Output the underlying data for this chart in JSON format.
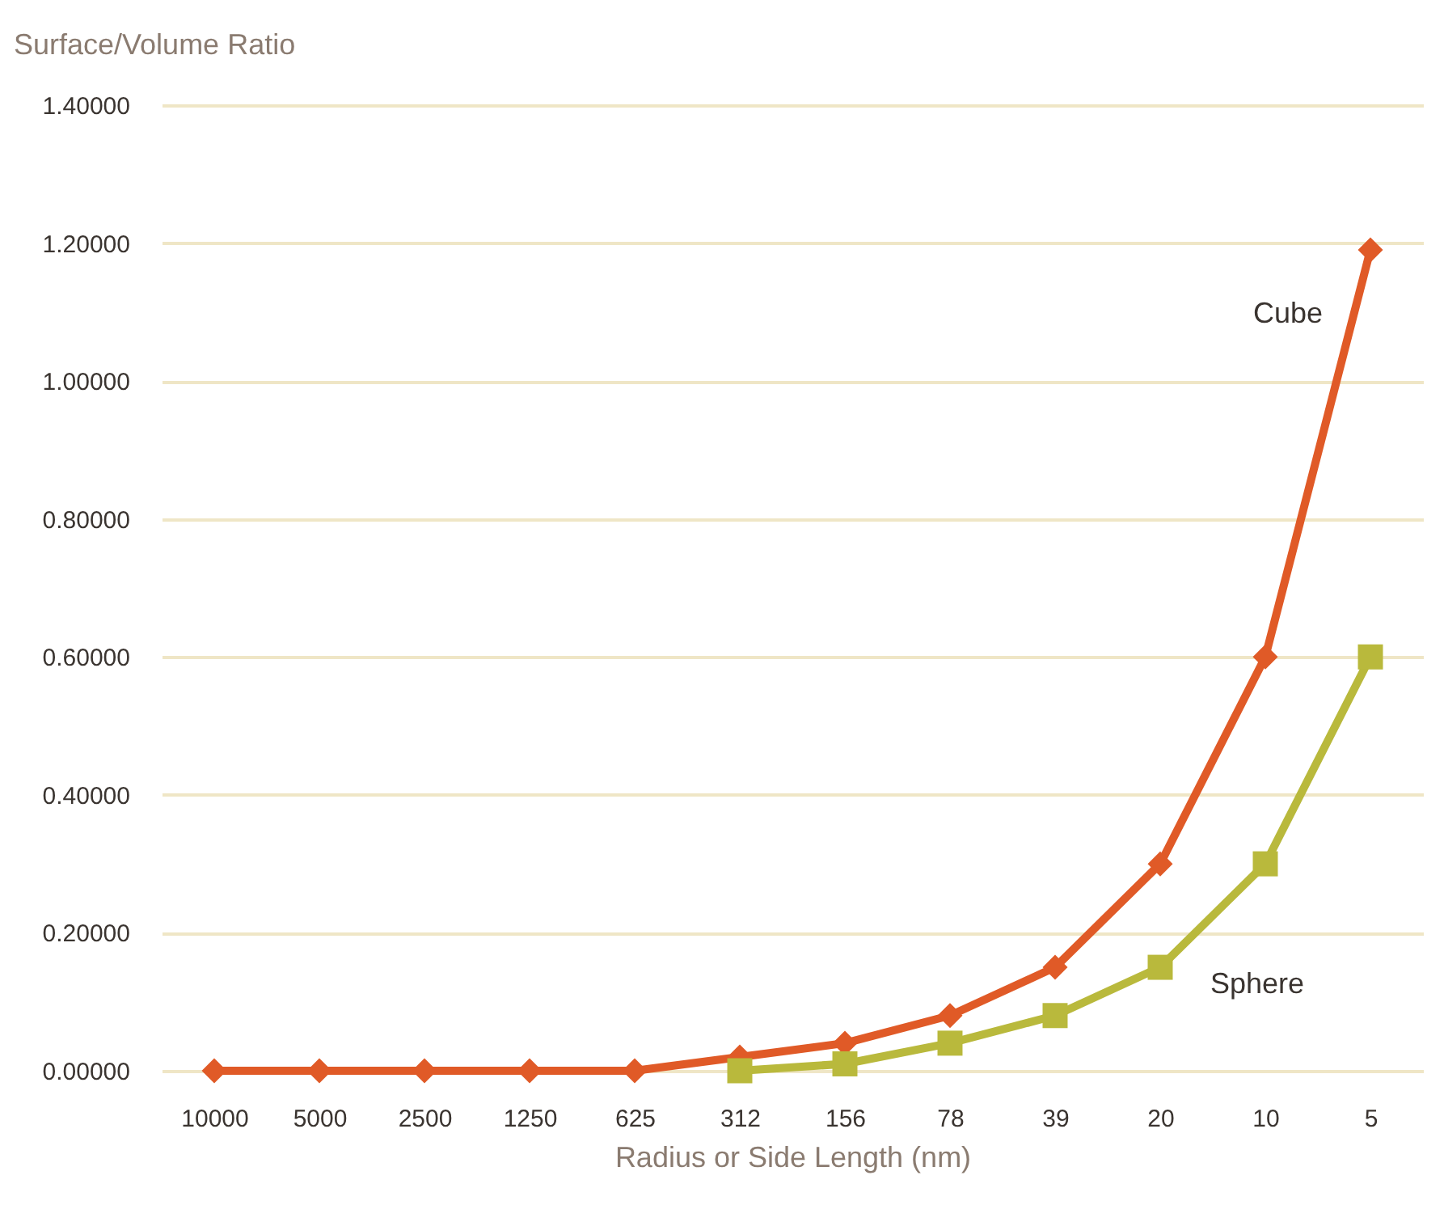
{
  "chart_data": {
    "type": "line",
    "xlabel": "Radius or Side Length (nm)",
    "ylabel": "Surface/Volume Ratio",
    "categories": [
      "10000",
      "5000",
      "2500",
      "1250",
      "625",
      "312",
      "156",
      "78",
      "39",
      "20",
      "10",
      "5"
    ],
    "series": [
      {
        "name": "Cube",
        "color": "#e05a27",
        "marker": "diamond",
        "values": [
          0.0,
          0.0,
          0.0,
          0.0,
          0.0,
          0.02,
          0.04,
          0.08,
          0.15,
          0.3,
          0.6,
          1.19
        ]
      },
      {
        "name": "Sphere",
        "color": "#b9b93c",
        "marker": "square",
        "values": [
          null,
          null,
          null,
          null,
          null,
          0.0,
          0.01,
          0.04,
          0.08,
          0.15,
          0.3,
          0.6
        ]
      }
    ],
    "ylim": [
      0,
      1.4
    ],
    "yticks": [
      {
        "value": 0,
        "label": "0.00000"
      },
      {
        "value": 0.2,
        "label": "0.20000"
      },
      {
        "value": 0.4,
        "label": "0.40000"
      },
      {
        "value": 0.6,
        "label": "0.60000"
      },
      {
        "value": 0.8,
        "label": "0.80000"
      },
      {
        "value": 1.0,
        "label": "1.00000"
      },
      {
        "value": 1.2,
        "label": "1.20000"
      },
      {
        "value": 1.4,
        "label": "1.40000"
      }
    ],
    "grid": "y"
  }
}
